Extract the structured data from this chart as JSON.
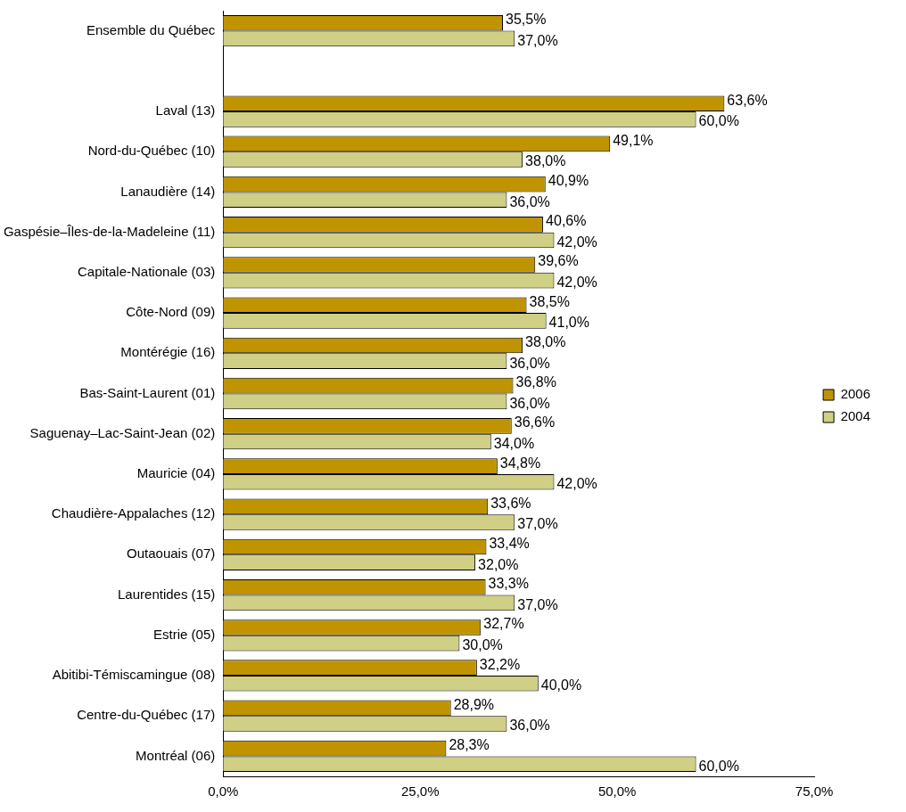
{
  "chart_data": {
    "type": "bar",
    "orientation": "horizontal",
    "categories": [
      "Ensemble du Québec",
      null,
      "Laval (13)",
      "Nord-du-Québec (10)",
      "Lanaudière (14)",
      "Gaspésie–Îles-de-la-Madeleine (11)",
      "Capitale-Nationale (03)",
      "Côte-Nord (09)",
      "Montérégie (16)",
      "Bas-Saint-Laurent (01)",
      "Saguenay–Lac-Saint-Jean (02)",
      "Mauricie (04)",
      "Chaudière-Appalaches (12)",
      "Outaouais (07)",
      "Laurentides (15)",
      "Estrie (05)",
      "Abitibi-Témiscamingue (08)",
      "Centre-du-Québec (17)",
      "Montréal (06)"
    ],
    "series": [
      {
        "name": "2006",
        "color": "#c09400",
        "values": [
          35.5,
          null,
          63.6,
          49.1,
          40.9,
          40.6,
          39.6,
          38.5,
          38.0,
          36.8,
          36.6,
          34.8,
          33.6,
          33.4,
          33.3,
          32.7,
          32.2,
          28.9,
          28.3
        ],
        "value_labels": [
          "35,5%",
          null,
          "63,6%",
          "49,1%",
          "40,9%",
          "40,6%",
          "39,6%",
          "38,5%",
          "38,0%",
          "36,8%",
          "36,6%",
          "34,8%",
          "33,6%",
          "33,4%",
          "33,3%",
          "32,7%",
          "32,2%",
          "28,9%",
          "28,3%"
        ]
      },
      {
        "name": "2004",
        "color": "#cfcf86",
        "values": [
          37.0,
          null,
          60.0,
          38.0,
          36.0,
          42.0,
          42.0,
          41.0,
          36.0,
          36.0,
          34.0,
          42.0,
          37.0,
          32.0,
          37.0,
          30.0,
          40.0,
          36.0,
          60.0
        ],
        "value_labels": [
          "37,0%",
          null,
          "60,0%",
          "38,0%",
          "36,0%",
          "42,0%",
          "42,0%",
          "41,0%",
          "36,0%",
          "36,0%",
          "34,0%",
          "42,0%",
          "37,0%",
          "32,0%",
          "37,0%",
          "30,0%",
          "40,0%",
          "36,0%",
          "60,0%"
        ]
      }
    ],
    "xlim": [
      0,
      75
    ],
    "xticks": [
      {
        "value": 0,
        "label": "0,0%"
      },
      {
        "value": 25,
        "label": "25,0%"
      },
      {
        "value": 50,
        "label": "50,0%"
      },
      {
        "value": 75,
        "label": "75,0%"
      }
    ],
    "legend": "right",
    "grid": false
  }
}
